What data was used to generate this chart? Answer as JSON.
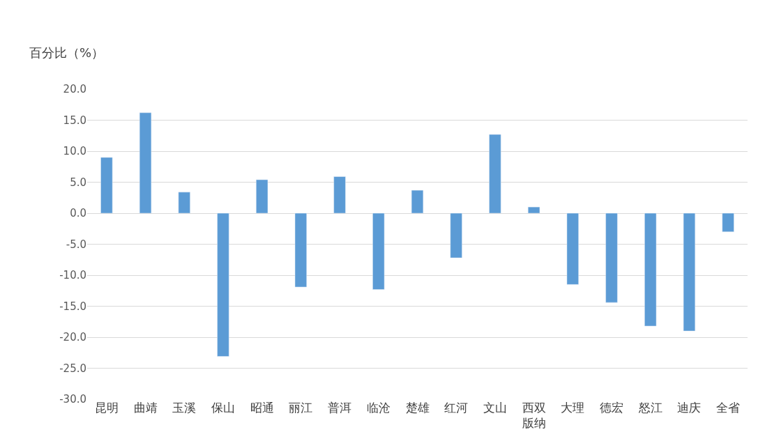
{
  "chart_data": {
    "type": "bar",
    "ylabel": "百分比（%）",
    "categories": [
      "昆明",
      "曲靖",
      "玉溪",
      "保山",
      "昭通",
      "丽江",
      "普洱",
      "临沧",
      "楚雄",
      "红河",
      "文山",
      "西双版纳",
      "大理",
      "德宏",
      "怒江",
      "迪庆",
      "全省"
    ],
    "values": [
      9.0,
      16.2,
      3.4,
      -23.1,
      5.4,
      -11.9,
      5.9,
      -12.3,
      3.7,
      -7.2,
      12.7,
      1.0,
      -11.5,
      -14.4,
      -18.2,
      -19.0,
      -3.0
    ],
    "color": "#5b9bd5",
    "ylim": [
      -30,
      20
    ],
    "yticks": [
      {
        "value": 20,
        "label": "20.0"
      },
      {
        "value": 15,
        "label": "15.0"
      },
      {
        "value": 10,
        "label": "10.0"
      },
      {
        "value": 5,
        "label": "5.0"
      },
      {
        "value": 0,
        "label": "0.0"
      },
      {
        "value": -5,
        "label": "-5.0"
      },
      {
        "value": -10,
        "label": "-10.0"
      },
      {
        "value": -15,
        "label": "-15.0"
      },
      {
        "value": -20,
        "label": "-20.0"
      },
      {
        "value": -25,
        "label": "-25.0"
      },
      {
        "value": -30,
        "label": "-30.0"
      }
    ],
    "grid": "y"
  }
}
